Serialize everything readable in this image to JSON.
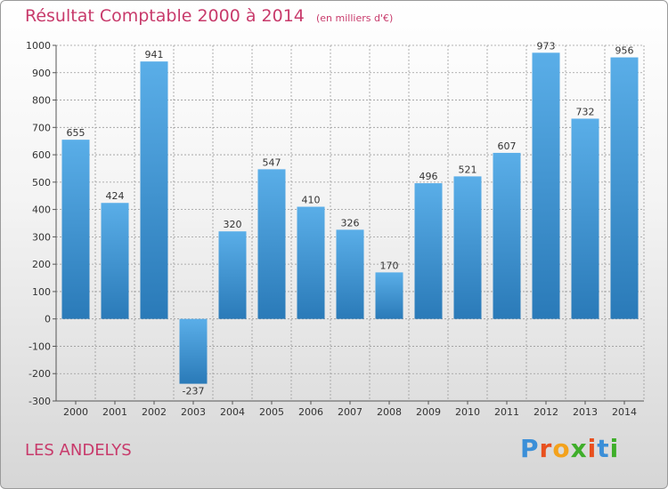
{
  "header": {
    "title": "Résultat Comptable 2000 à 2014",
    "subtitle": "(en milliers d'€)"
  },
  "footer": {
    "commune": "LES ANDELYS",
    "logo_text": "Proxiti"
  },
  "colors": {
    "title": "#c83a6b",
    "bar_light": "#5aaee8",
    "bar_dark": "#2a7ab8"
  },
  "chart_data": {
    "type": "bar",
    "title": "Résultat Comptable 2000 à 2014",
    "subtitle": "(en milliers d'€)",
    "categories": [
      "2000",
      "2001",
      "2002",
      "2003",
      "2004",
      "2005",
      "2006",
      "2007",
      "2008",
      "2009",
      "2010",
      "2011",
      "2012",
      "2013",
      "2014"
    ],
    "values": [
      655,
      424,
      941,
      -237,
      320,
      547,
      410,
      326,
      170,
      496,
      521,
      607,
      973,
      732,
      956
    ],
    "ylim": [
      -300,
      1000
    ],
    "yticks": [
      1000,
      900,
      800,
      700,
      600,
      500,
      400,
      300,
      200,
      100,
      0,
      -100,
      -200,
      -300
    ],
    "ytick_labels": [
      "1000",
      "900",
      "800",
      "700",
      "600",
      "500",
      "400",
      "300",
      "200",
      "100",
      "0",
      "-100",
      "-200",
      "-300"
    ],
    "grid": true,
    "xlabel": "",
    "ylabel": ""
  }
}
